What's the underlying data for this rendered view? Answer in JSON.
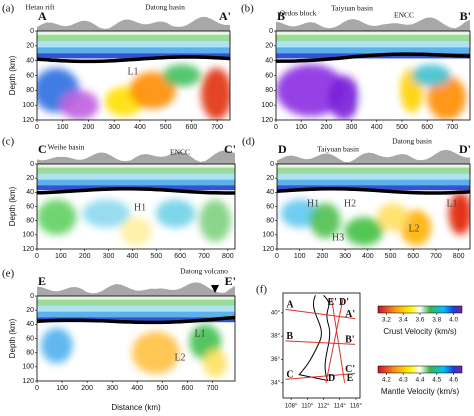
{
  "panels": [
    {
      "label": "(a)",
      "start": "A",
      "end": "A'",
      "annotations": [
        "Hetao rift",
        "Datong basin"
      ],
      "features": [
        "L1"
      ],
      "xlim": [
        0,
        750
      ],
      "xticks": [
        0,
        100,
        200,
        300,
        400,
        500,
        600,
        700
      ],
      "ylim": [
        0,
        120
      ],
      "yticks": [
        0,
        20,
        40,
        60,
        80,
        100,
        120
      ],
      "ylabel": "Depth (km)"
    },
    {
      "label": "(b)",
      "start": "B",
      "end": "B'",
      "annotations": [
        "Ordos block",
        "Taiyuan basin",
        "ENCC"
      ],
      "features": [],
      "xlim": [
        0,
        770
      ],
      "xticks": [
        0,
        100,
        200,
        300,
        400,
        500,
        600,
        700
      ],
      "ylim": [
        0,
        120
      ],
      "yticks": [
        0,
        20,
        40,
        60,
        80,
        100,
        120
      ]
    },
    {
      "label": "(c)",
      "start": "C",
      "end": "C'",
      "annotations": [
        "Weihe basin",
        "ENCC"
      ],
      "features": [
        "H1"
      ],
      "xlim": [
        0,
        830
      ],
      "xticks": [
        0,
        100,
        200,
        300,
        400,
        500,
        600,
        700,
        800
      ],
      "ylim": [
        0,
        120
      ],
      "yticks": [
        0,
        20,
        40,
        60,
        80,
        100,
        120
      ],
      "ylabel": "Depth (km)"
    },
    {
      "label": "(d)",
      "start": "D",
      "end": "D'",
      "annotations": [
        "Taiyuan basin",
        "Datong basin"
      ],
      "features": [
        "H1",
        "H2",
        "H3",
        "L2",
        "L1"
      ],
      "xlim": [
        0,
        850
      ],
      "xticks": [
        0,
        100,
        200,
        300,
        400,
        500,
        600,
        700,
        800
      ],
      "ylim": [
        0,
        120
      ],
      "yticks": [
        0,
        20,
        40,
        60,
        80,
        100,
        120
      ]
    },
    {
      "label": "(e)",
      "start": "E",
      "end": "E'",
      "annotations": [
        "Datong volcano"
      ],
      "features": [
        "L1",
        "L2"
      ],
      "xlim": [
        0,
        790
      ],
      "xticks": [
        0,
        100,
        200,
        300,
        400,
        500,
        600,
        700
      ],
      "ylim": [
        0,
        120
      ],
      "yticks": [
        0,
        20,
        40,
        60,
        80,
        100,
        120
      ],
      "ylabel": "Depth (km)",
      "xlabel": "Distance (km)"
    }
  ],
  "map": {
    "label": "(f)",
    "profile_labels": [
      "A",
      "A'",
      "B",
      "B'",
      "C",
      "C'",
      "D",
      "D'",
      "E",
      "E'"
    ],
    "xlim": [
      107,
      116.5
    ],
    "xticks": [
      {
        "value": 108,
        "label": "108°"
      },
      {
        "value": 110,
        "label": "110°"
      },
      {
        "value": 112,
        "label": "112°"
      },
      {
        "value": 114,
        "label": "114°"
      },
      {
        "value": 116,
        "label": "116°"
      }
    ],
    "ylim": [
      32.7,
      41.7
    ],
    "yticks": [
      {
        "value": 34,
        "label": "34°"
      },
      {
        "value": 36,
        "label": "36°"
      },
      {
        "value": 38,
        "label": "38°"
      },
      {
        "value": 40,
        "label": "40°"
      }
    ]
  },
  "colorbars": [
    {
      "title": "Crust Velocity (km/s)",
      "lim": [
        3.1,
        4.1
      ],
      "ticks": [
        3.2,
        3.4,
        3.6,
        3.8,
        {
          "value": 4.0,
          "label": "4.0"
        }
      ]
    },
    {
      "title": "Mantle Velocity (km/s)",
      "lim": [
        4.15,
        4.65
      ],
      "ticks": [
        4.2,
        4.3,
        4.4,
        4.5,
        4.6
      ]
    }
  ]
}
